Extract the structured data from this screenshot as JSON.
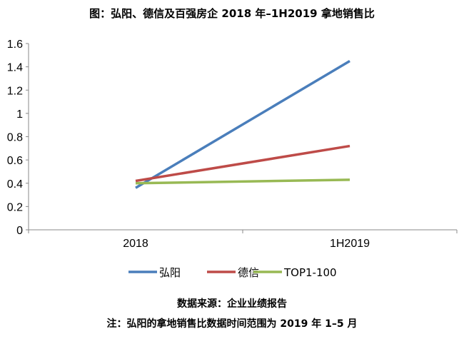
{
  "chart_data": {
    "type": "line",
    "title": "图：弘阳、德信及百强房企 2018 年–1H2019 拿地销售比",
    "categories": [
      "2018",
      "1H2019"
    ],
    "ylim": [
      0,
      1.6
    ],
    "yticks": [
      "0",
      "0.2",
      "0.4",
      "0.6",
      "0.8",
      "1",
      "1.2",
      "1.4",
      "1.6"
    ],
    "grid": false,
    "legend": "bottom",
    "series": [
      {
        "name": "弘阳",
        "values": [
          0.36,
          1.45
        ],
        "color": "#4a7ebb"
      },
      {
        "name": "德信",
        "values": [
          0.42,
          0.72
        ],
        "color": "#be4b48"
      },
      {
        "name": "TOP1-100",
        "values": [
          0.4,
          0.43
        ],
        "color": "#98b954"
      }
    ]
  },
  "footer": {
    "source": "数据来源：企业业绩报告",
    "note": "注：弘阳的拿地销售比数据时间范围为 2019 年 1–5 月"
  }
}
